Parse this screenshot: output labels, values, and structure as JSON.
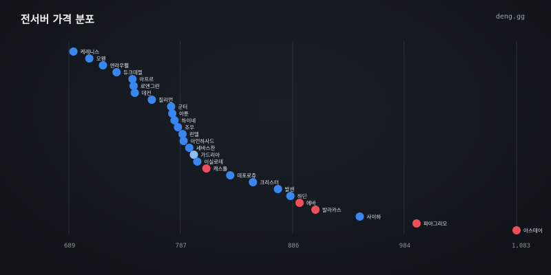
{
  "page": {
    "title": "전서버 가격 분포",
    "brand": "deng.gg"
  },
  "colors": {
    "blue": "#3a86f0",
    "light_blue": "#8fc0f5",
    "red": "#ef4f5b",
    "grid": "#2c333c"
  },
  "chart_data": {
    "type": "scatter",
    "title": "전서버 가격 분포",
    "xlabel": "",
    "ylabel": "",
    "xlim": [
      689,
      1083
    ],
    "x_ticks": [
      689,
      787,
      886,
      984,
      1083
    ],
    "x_tick_labels": [
      "689",
      "787",
      "886",
      "984",
      "1,083"
    ],
    "grid": true,
    "points": [
      {
        "name": "케레니스",
        "value": 693,
        "color": "blue"
      },
      {
        "name": "오웬",
        "value": 707,
        "color": "blue"
      },
      {
        "name": "엔라우펠",
        "value": 719,
        "color": "blue"
      },
      {
        "name": "듀크데필",
        "value": 731,
        "color": "blue"
      },
      {
        "name": "아프르",
        "value": 745,
        "color": "blue"
      },
      {
        "name": "로엔그린",
        "value": 746,
        "color": "blue"
      },
      {
        "name": "데컨",
        "value": 747,
        "color": "blue"
      },
      {
        "name": "질리언",
        "value": 762,
        "color": "blue"
      },
      {
        "name": "군터",
        "value": 779,
        "color": "blue"
      },
      {
        "name": "아툰",
        "value": 780,
        "color": "blue"
      },
      {
        "name": "하이네",
        "value": 782,
        "color": "blue"
      },
      {
        "name": "조우",
        "value": 785,
        "color": "blue"
      },
      {
        "name": "린델",
        "value": 789,
        "color": "blue"
      },
      {
        "name": "아인하사드",
        "value": 790,
        "color": "blue"
      },
      {
        "name": "세바스찬",
        "value": 795,
        "color": "blue"
      },
      {
        "name": "가드리아",
        "value": 799,
        "color": "light_blue"
      },
      {
        "name": "이실로테",
        "value": 802,
        "color": "blue"
      },
      {
        "name": "캐스톨",
        "value": 810,
        "color": "red"
      },
      {
        "name": "데포로쥬",
        "value": 831,
        "color": "blue"
      },
      {
        "name": "크리스터",
        "value": 851,
        "color": "blue"
      },
      {
        "name": "발센",
        "value": 873,
        "color": "blue"
      },
      {
        "name": "하딘",
        "value": 884,
        "color": "blue"
      },
      {
        "name": "에바",
        "value": 892,
        "color": "red"
      },
      {
        "name": "발라카스",
        "value": 906,
        "color": "red"
      },
      {
        "name": "사이하",
        "value": 945,
        "color": "blue"
      },
      {
        "name": "파아그리오",
        "value": 995,
        "color": "red"
      },
      {
        "name": "아스테어",
        "value": 1083,
        "color": "red"
      }
    ]
  }
}
